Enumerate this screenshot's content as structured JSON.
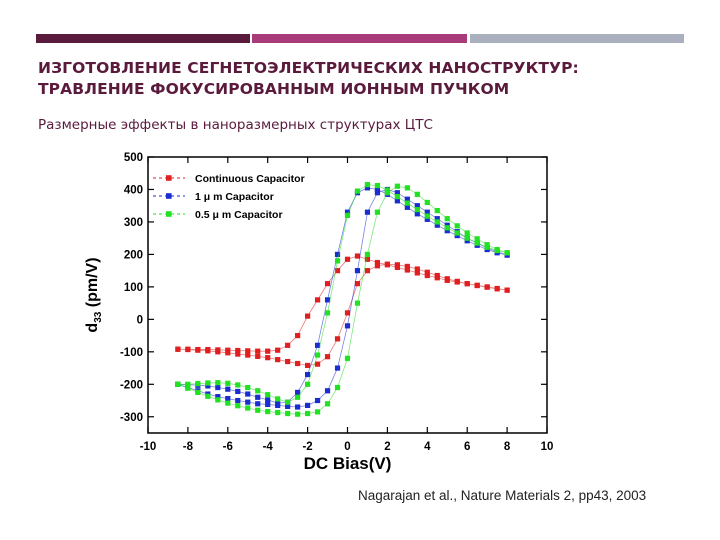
{
  "slide": {
    "title_line1": "ИЗГОТОВЛЕНИЕ СЕГНЕТОЭЛЕКТРИЧЕСКИХ НАНОСТРУКТУР:",
    "title_line2": "ТРАВЛЕНИЕ ФОКУСИРОВАННЫМ ИОННЫМ ПУЧКОМ",
    "subtitle": "Размерные эффекты в наноразмерных структурах ЦТС",
    "citation": "Nagarajan et al., Nature Materials 2, pp43, 2003",
    "accent_colors": [
      "#5a1a3c",
      "#a83c7a",
      "#aab0bd"
    ]
  },
  "chart_data": {
    "type": "scatter",
    "title": "",
    "xlabel": "DC Bias(V)",
    "ylabel": "d 33 (pm/V)",
    "xlim": [
      -10,
      10
    ],
    "ylim": [
      -350,
      500
    ],
    "xticks": [
      -10,
      -8,
      -6,
      -4,
      -2,
      0,
      2,
      4,
      6,
      8,
      10
    ],
    "yticks": [
      -300,
      -200,
      -100,
      0,
      100,
      200,
      300,
      400,
      500
    ],
    "grid": false,
    "legend_position": "top-left",
    "series": [
      {
        "name": "Continuous Capacitor",
        "color": "#e02020",
        "marker": "square",
        "x": [
          -8.5,
          -8,
          -7.5,
          -7,
          -6.5,
          -6,
          -5.5,
          -5,
          -4.5,
          -4,
          -3.5,
          -3,
          -2.5,
          -2,
          -1.5,
          -1,
          -0.5,
          0,
          0.5,
          1,
          1.5,
          2,
          2.5,
          3,
          3.5,
          4,
          4.5,
          5,
          5.5,
          6,
          6.5,
          7,
          7.5,
          8,
          8,
          7.5,
          7,
          6.5,
          6,
          5.5,
          5,
          4.5,
          4,
          3.5,
          3,
          2.5,
          2,
          1.5,
          1,
          0.5,
          0,
          -0.5,
          -1,
          -1.5,
          -2,
          -2.5,
          -3,
          -3.5,
          -4,
          -4.5,
          -5,
          -5.5,
          -6,
          -6.5,
          -7,
          -7.5,
          -8,
          -8.5
        ],
        "y": [
          -92,
          -93,
          -95,
          -97,
          -100,
          -103,
          -107,
          -110,
          -114,
          -118,
          -124,
          -130,
          -136,
          -142,
          -138,
          -115,
          -60,
          20,
          110,
          150,
          165,
          170,
          168,
          163,
          155,
          145,
          135,
          125,
          117,
          110,
          104,
          99,
          94,
          90,
          90,
          95,
          100,
          105,
          110,
          115,
          120,
          128,
          135,
          143,
          152,
          160,
          168,
          175,
          185,
          195,
          185,
          150,
          110,
          60,
          10,
          -50,
          -80,
          -95,
          -98,
          -98,
          -97,
          -96,
          -95,
          -94,
          -93,
          -93,
          -92,
          -92
        ]
      },
      {
        "name": "1 μ m Capacitor",
        "color": "#1a2ed0",
        "marker": "square",
        "x": [
          -8.5,
          -8,
          -7.5,
          -7,
          -6.5,
          -6,
          -5.5,
          -5,
          -4.5,
          -4,
          -3.5,
          -3,
          -2.5,
          -2,
          -1.5,
          -1,
          -0.5,
          0,
          0.5,
          1,
          1.5,
          2,
          2.5,
          3,
          3.5,
          4,
          4.5,
          5,
          5.5,
          6,
          6.5,
          7,
          7.5,
          8,
          8,
          7.5,
          7,
          6.5,
          6,
          5.5,
          5,
          4.5,
          4,
          3.5,
          3,
          2.5,
          2,
          1.5,
          1,
          0.5,
          0,
          -0.5,
          -1,
          -1.5,
          -2,
          -2.5,
          -3,
          -3.5,
          -4,
          -4.5,
          -5,
          -5.5,
          -6,
          -6.5,
          -7,
          -7.5,
          -8,
          -8.5
        ],
        "y": [
          -200,
          -210,
          -220,
          -230,
          -238,
          -244,
          -250,
          -255,
          -260,
          -262,
          -265,
          -268,
          -270,
          -265,
          -250,
          -220,
          -150,
          -20,
          150,
          330,
          390,
          400,
          390,
          370,
          350,
          330,
          310,
          290,
          270,
          250,
          235,
          220,
          208,
          198,
          198,
          205,
          215,
          228,
          242,
          258,
          273,
          290,
          308,
          325,
          345,
          365,
          385,
          400,
          405,
          390,
          330,
          200,
          60,
          -80,
          -170,
          -225,
          -255,
          -258,
          -248,
          -240,
          -230,
          -222,
          -215,
          -210,
          -205,
          -203,
          -201,
          -200
        ]
      },
      {
        "name": "0.5 μ m Capacitor",
        "color": "#22e022",
        "marker": "square",
        "x": [
          -8.5,
          -8,
          -7.5,
          -7,
          -6.5,
          -6,
          -5.5,
          -5,
          -4.5,
          -4,
          -3.5,
          -3,
          -2.5,
          -2,
          -1.5,
          -1,
          -0.5,
          0,
          0.5,
          1,
          1.5,
          2,
          2.5,
          3,
          3.5,
          4,
          4.5,
          5,
          5.5,
          6,
          6.5,
          7,
          7.5,
          8,
          8,
          7.5,
          7,
          6.5,
          6,
          5.5,
          5,
          4.5,
          4,
          3.5,
          3,
          2.5,
          2,
          1.5,
          1,
          0.5,
          0,
          -0.5,
          -1,
          -1.5,
          -2,
          -2.5,
          -3,
          -3.5,
          -4,
          -4.5,
          -5,
          -5.5,
          -6,
          -6.5,
          -7,
          -7.5,
          -8,
          -8.5
        ],
        "y": [
          -200,
          -212,
          -225,
          -237,
          -248,
          -258,
          -266,
          -273,
          -280,
          -284,
          -287,
          -290,
          -292,
          -290,
          -285,
          -260,
          -210,
          -120,
          50,
          200,
          330,
          390,
          410,
          405,
          385,
          360,
          335,
          310,
          288,
          266,
          248,
          230,
          215,
          205,
          205,
          212,
          222,
          235,
          250,
          266,
          282,
          300,
          318,
          338,
          358,
          378,
          398,
          412,
          415,
          395,
          320,
          180,
          20,
          -110,
          -200,
          -240,
          -255,
          -245,
          -232,
          -220,
          -210,
          -202,
          -197,
          -195,
          -196,
          -198,
          -200,
          -200
        ]
      }
    ]
  }
}
